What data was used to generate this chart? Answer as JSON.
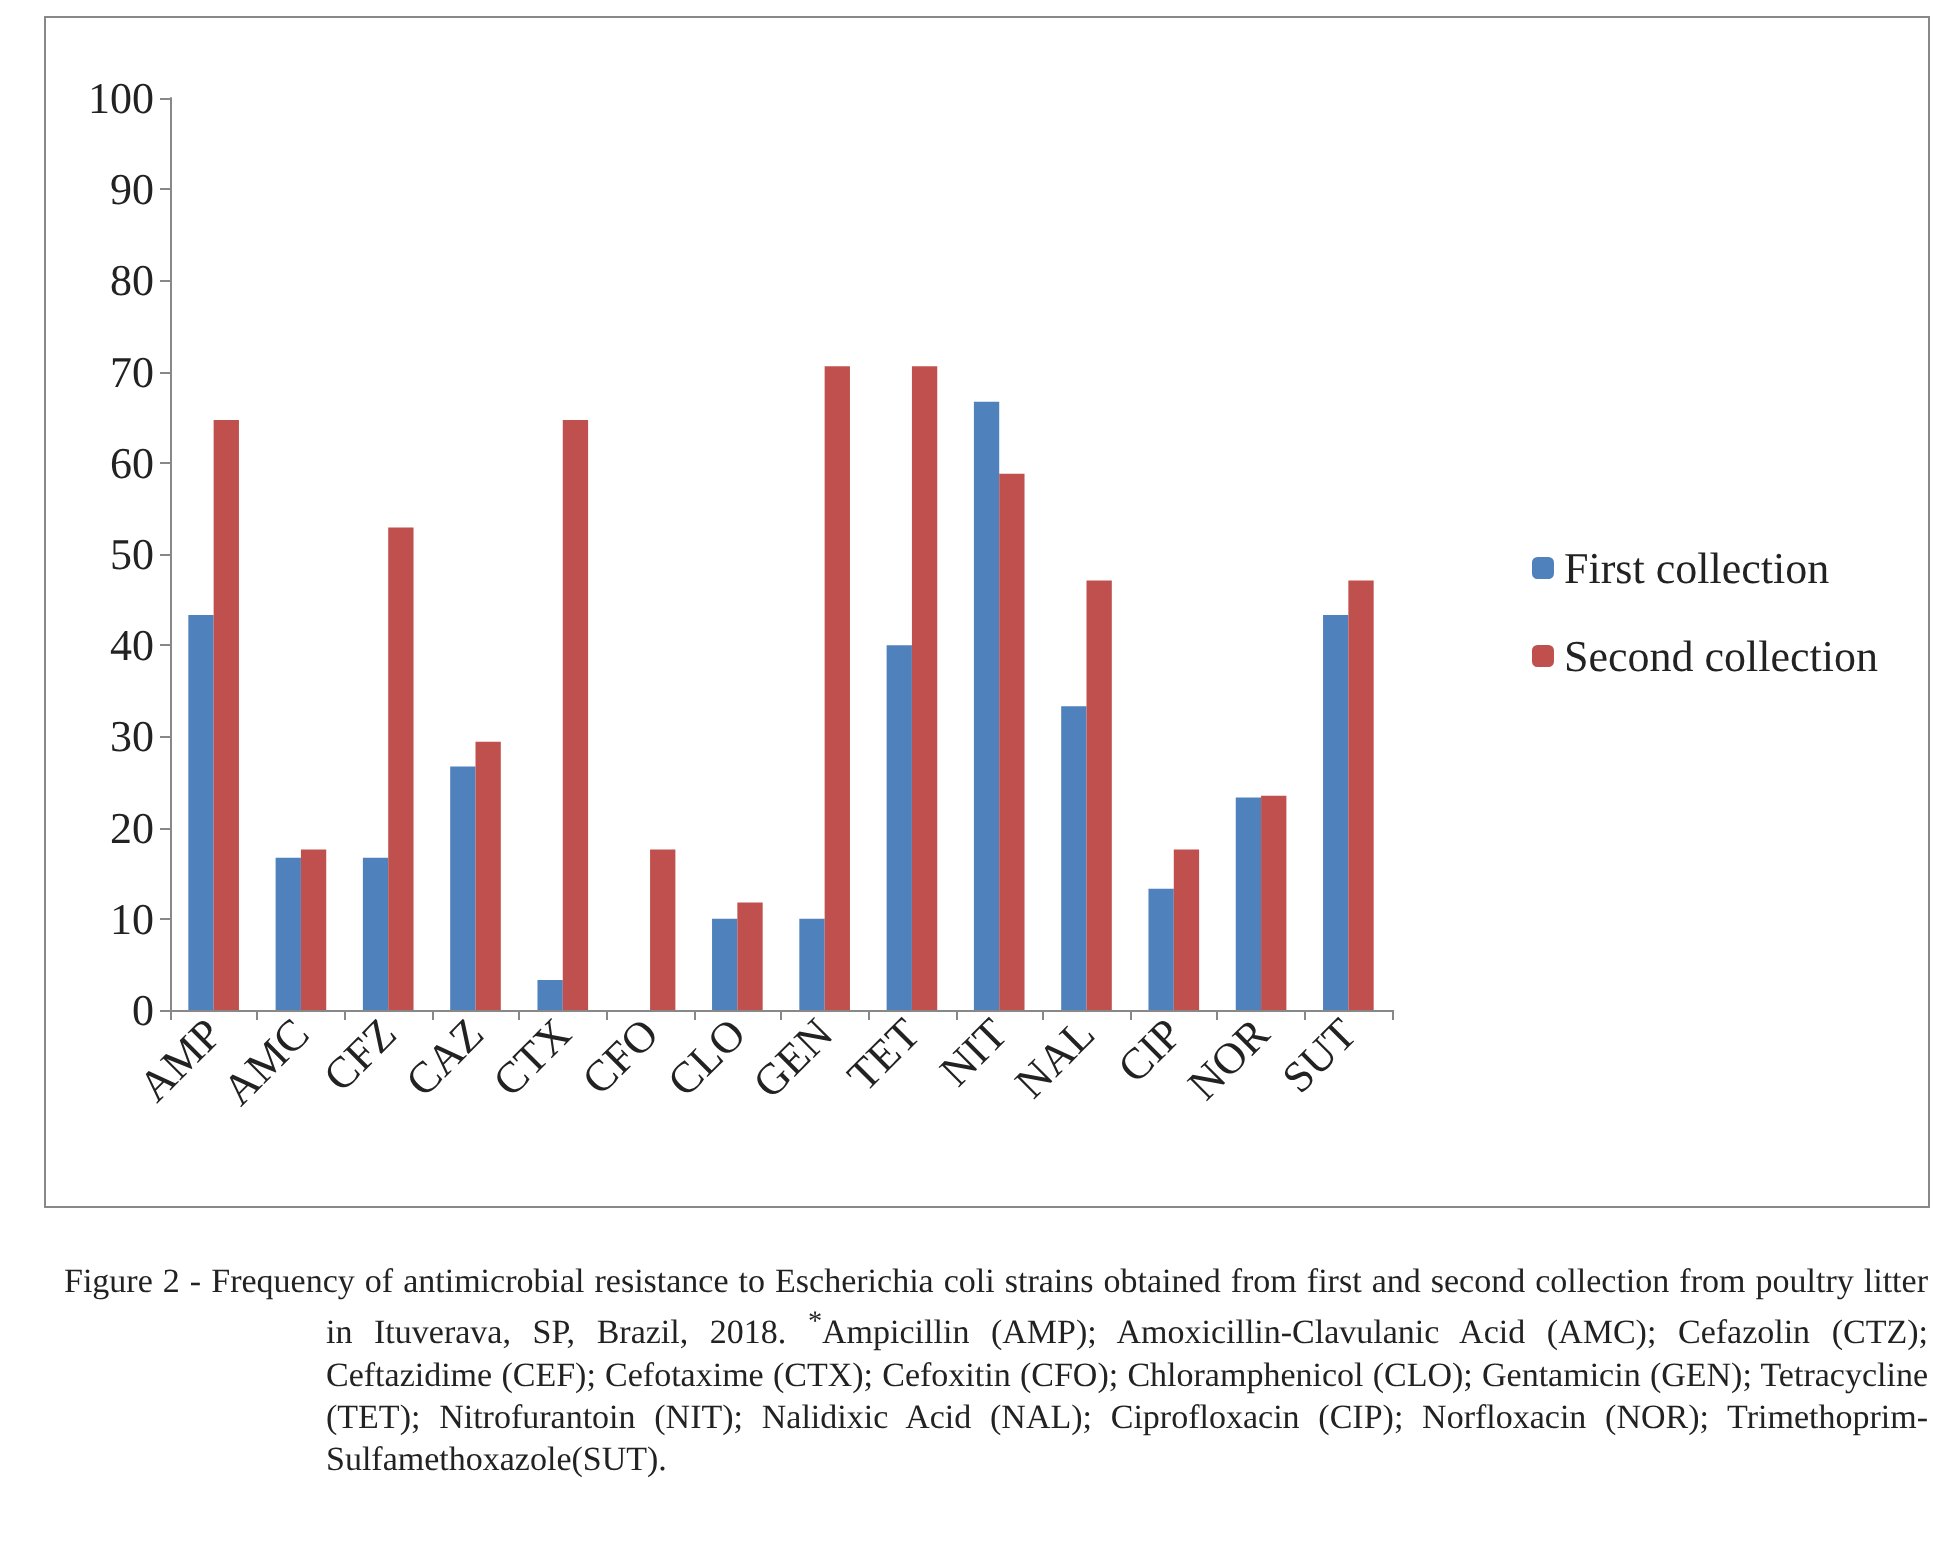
{
  "chart_data": {
    "type": "bar",
    "categories": [
      "AMP",
      "AMC",
      "CFZ",
      "CAZ",
      "CTX",
      "CFO",
      "CLO",
      "GEN",
      "TET",
      "NIT",
      "NAL",
      "CIP",
      "NOR",
      "SUT"
    ],
    "series": [
      {
        "name": "First collection",
        "color": "#4f81bd",
        "values": [
          43.3,
          16.7,
          16.7,
          26.7,
          3.3,
          0,
          10,
          10,
          40,
          66.7,
          33.3,
          13.3,
          23.3,
          43.3
        ]
      },
      {
        "name": "Second collection",
        "color": "#c0504d",
        "values": [
          64.7,
          17.6,
          52.9,
          29.4,
          64.7,
          17.6,
          11.8,
          70.6,
          70.6,
          58.8,
          47.1,
          17.6,
          23.5,
          47.1
        ]
      }
    ],
    "ylim": [
      0,
      100
    ],
    "yticks": [
      0,
      10,
      20,
      30,
      40,
      50,
      60,
      70,
      80,
      90,
      100
    ],
    "grid": false,
    "legend": "right",
    "annotations": [
      "Figure 2 - Frequency of antimicrobial resistance to Escherichia coli strains obtained from first and second collection from poultry litter in Ituverava, SP, Brazil, 2018. $^{*}$Ampicillin (AMP); Amoxicillin-Clavulanic Acid (AMC); Cefazolin (CTZ); Ceftazidime (CEF); Cefotaxime (CTX); Cefoxitin (CFO); Chloramphenicol (CLO); Gentamicin (GEN); Tetracycline (TET); Nitrofurantoin (NIT); Nalidixic Acid (NAL); Ciprofloxacin (CIP); Norfloxacin (NOR); Trimethoprim-Sulfamethoxazole(SUT)."
    ]
  }
}
